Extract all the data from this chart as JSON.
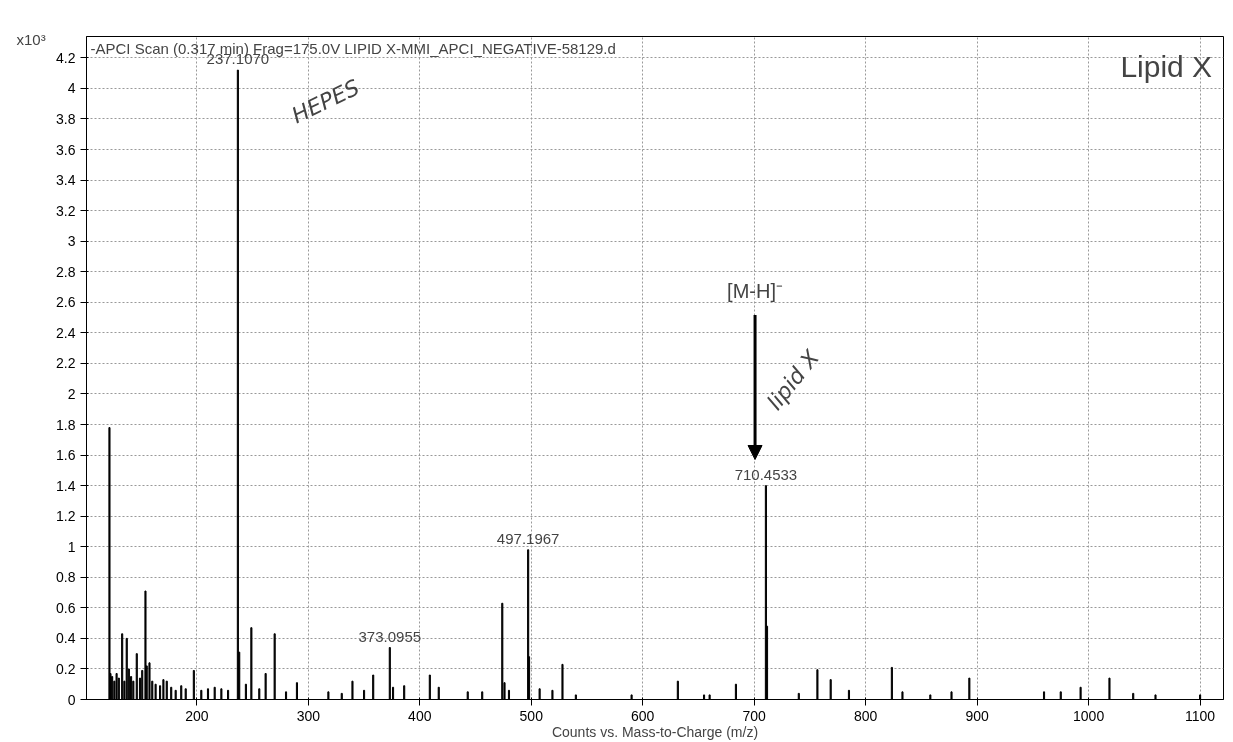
{
  "chart_data": {
    "type": "bar",
    "title": "-APCI Scan (0.317 min) Frag=175.0V LIPID X-MMI_APCI_NEGATIVE-58129.d",
    "xlabel": "Counts vs. Mass-to-Charge (m/z)",
    "ylabel": "x10³",
    "x": [
      121.6,
      122.5,
      124,
      126,
      128,
      130,
      133,
      135,
      137.1,
      139,
      141,
      143,
      146.1,
      149,
      151,
      153.9,
      155,
      157.5,
      160,
      163,
      167,
      170,
      173,
      177,
      181,
      186,
      190,
      197.3,
      204,
      210,
      216,
      222,
      228,
      236.8,
      238,
      244,
      248.9,
      256,
      261.7,
      269.8,
      280,
      289.8,
      318,
      330,
      339.6,
      350,
      358.2,
      373.1,
      376,
      386,
      409,
      417,
      443,
      456,
      474,
      476,
      480,
      497.2,
      498,
      507.5,
      519,
      528,
      540,
      590,
      631.5,
      655,
      660,
      683.6,
      710.5,
      711.5,
      740,
      756.7,
      768.6,
      785,
      823.5,
      833,
      858,
      877,
      893,
      960,
      975,
      992.8,
      1018.7,
      1040,
      1060,
      1100
    ],
    "values": [
      1.78,
      0.17,
      0.15,
      0.12,
      0.17,
      0.14,
      0.43,
      0.12,
      0.4,
      0.2,
      0.15,
      0.12,
      0.3,
      0.14,
      0.19,
      0.71,
      0.22,
      0.24,
      0.12,
      0.1,
      0.09,
      0.13,
      0.12,
      0.08,
      0.06,
      0.09,
      0.07,
      0.19,
      0.06,
      0.07,
      0.08,
      0.07,
      0.06,
      4.12,
      0.31,
      0.1,
      0.47,
      0.07,
      0.17,
      0.43,
      0.05,
      0.11,
      0.05,
      0.04,
      0.12,
      0.06,
      0.16,
      0.34,
      0.08,
      0.09,
      0.16,
      0.08,
      0.05,
      0.05,
      0.63,
      0.11,
      0.06,
      0.98,
      0.28,
      0.07,
      0.06,
      0.23,
      0.03,
      0.03,
      0.12,
      0.03,
      0.03,
      0.1,
      1.4,
      0.48,
      0.04,
      0.195,
      0.13,
      0.06,
      0.21,
      0.05,
      0.03,
      0.05,
      0.14,
      0.05,
      0.05,
      0.08,
      0.14,
      0.04,
      0.03,
      0.03
    ],
    "color": "#000000",
    "xlim": [
      101,
      1121
    ],
    "xticks": [
      200,
      300,
      400,
      500,
      600,
      700,
      800,
      900,
      1000,
      1100
    ],
    "ylim": [
      0,
      4.34
    ],
    "yticks": [
      0,
      0.2,
      0.4,
      0.6,
      0.8,
      1,
      1.2,
      1.4,
      1.6,
      1.8,
      2,
      2.2,
      2.4,
      2.6,
      2.8,
      3,
      3.2,
      3.4,
      3.6,
      3.8,
      4,
      4.2
    ],
    "grid": true,
    "annotations": [
      {
        "text": "237.1070",
        "x": 236.8,
        "y": 4.12
      },
      {
        "text": "373.0955",
        "x": 373.1,
        "y": 0.34
      },
      {
        "text": "497.1967",
        "x": 497.2,
        "y": 0.98
      },
      {
        "text": "710.4533",
        "x": 710.5,
        "y": 1.4
      },
      "HEPES",
      "[M-H]⁻",
      "lipid X",
      "Lipid X"
    ]
  }
}
